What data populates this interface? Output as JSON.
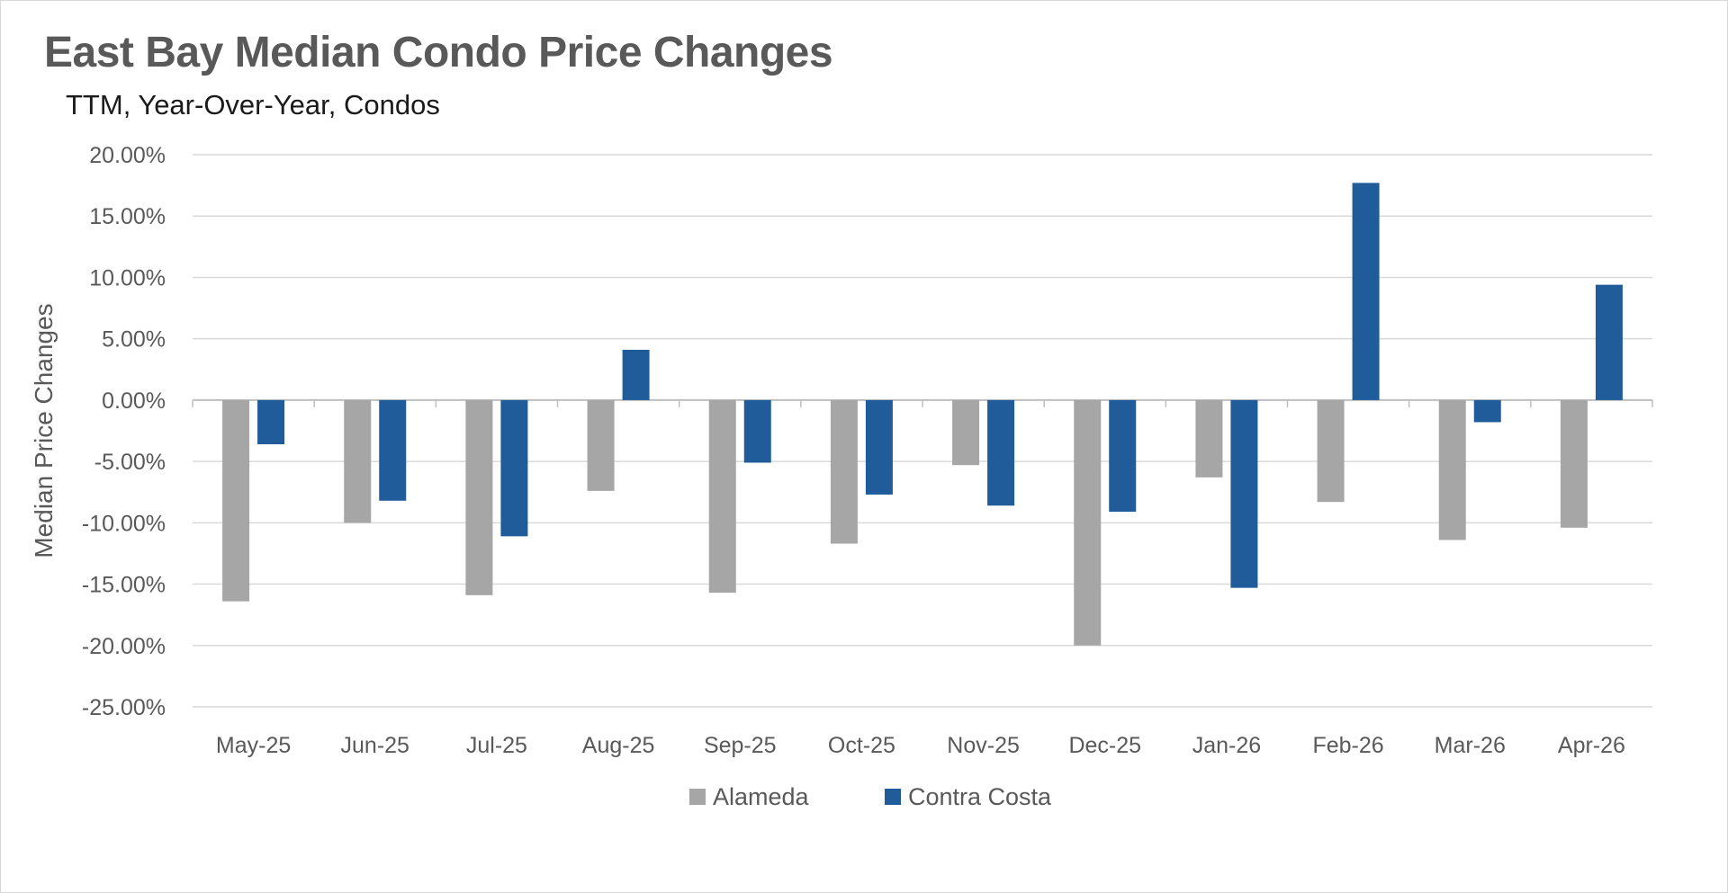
{
  "chart_data": {
    "type": "bar",
    "title": "East Bay Median Condo Price Changes",
    "subtitle": "TTM, Year-Over-Year, Condos",
    "xlabel": "",
    "ylabel": "Median Price Changes",
    "categories": [
      "May-25",
      "Jun-25",
      "Jul-25",
      "Aug-25",
      "Sep-25",
      "Oct-25",
      "Nov-25",
      "Dec-25",
      "Jan-26",
      "Feb-26",
      "Mar-26",
      "Apr-26"
    ],
    "series": [
      {
        "name": "Alameda",
        "color": "#a6a6a6",
        "values": [
          -16.4,
          -10.0,
          -15.9,
          -7.4,
          -15.7,
          -11.7,
          -5.3,
          -20.0,
          -6.3,
          -8.3,
          -11.4,
          -10.4
        ]
      },
      {
        "name": "Contra Costa",
        "color": "#1f5c99",
        "values": [
          -3.6,
          -8.2,
          -11.1,
          4.1,
          -5.1,
          -7.7,
          -8.6,
          -9.1,
          -15.3,
          17.7,
          -1.8,
          9.4
        ]
      }
    ],
    "ylim": [
      -25,
      20
    ],
    "yticks": [
      20,
      15,
      10,
      5,
      0,
      -5,
      -10,
      -15,
      -20,
      -25
    ],
    "ytick_labels": [
      "20.00%",
      "15.00%",
      "10.00%",
      "5.00%",
      "0.00%",
      "-5.00%",
      "-10.00%",
      "-15.00%",
      "-20.00%",
      "-25.00%"
    ],
    "grid": true,
    "legend_position": "bottom"
  }
}
